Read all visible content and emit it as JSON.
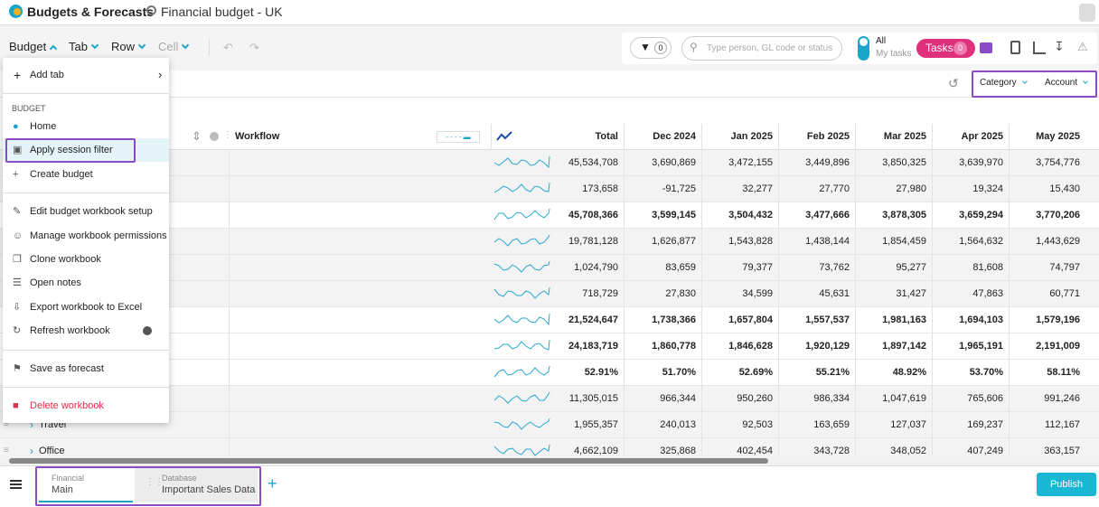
{
  "header": {
    "app_title": "Budgets & Forecasts",
    "workbook": "Financial budget - UK"
  },
  "toolbar": {
    "menus": [
      "Budget",
      "Tab",
      "Row",
      "Cell"
    ],
    "filter_count": "0",
    "search_placeholder": "Type person, GL code or status",
    "toggle": [
      "All",
      "My tasks"
    ],
    "tasks": "Tasks",
    "tasks_count": "0"
  },
  "dimensions": [
    "Category",
    "Account"
  ],
  "menu": {
    "top": "Add tab",
    "section": "BUDGET",
    "groups": [
      [
        "Home",
        "Apply session filter",
        "Create budget"
      ],
      [
        "Edit budget workbook setup",
        "Manage workbook permissions",
        "Clone workbook",
        "Open notes",
        "Export workbook to Excel",
        "Refresh workbook"
      ],
      [
        "Save as forecast"
      ],
      [
        "Delete workbook"
      ]
    ]
  },
  "table": {
    "workflow_header": "Workflow",
    "columns": [
      "Total",
      "Dec 2024",
      "Jan 2025",
      "Feb 2025",
      "Mar 2025",
      "Apr 2025",
      "May 2025"
    ],
    "rows": [
      {
        "values": [
          "45,534,708",
          "3,690,869",
          "3,472,155",
          "3,449,896",
          "3,850,325",
          "3,639,970",
          "3,754,776"
        ],
        "bold": false
      },
      {
        "values": [
          "173,658",
          "-91,725",
          "32,277",
          "27,770",
          "27,980",
          "19,324",
          "15,430"
        ],
        "bold": false
      },
      {
        "values": [
          "45,708,366",
          "3,599,145",
          "3,504,432",
          "3,477,666",
          "3,878,305",
          "3,659,294",
          "3,770,206"
        ],
        "bold": true
      },
      {
        "values": [
          "19,781,128",
          "1,626,877",
          "1,543,828",
          "1,438,144",
          "1,854,459",
          "1,564,632",
          "1,443,629"
        ],
        "bold": false
      },
      {
        "values": [
          "1,024,790",
          "83,659",
          "79,377",
          "73,762",
          "95,277",
          "81,608",
          "74,797"
        ],
        "bold": false
      },
      {
        "values": [
          "718,729",
          "27,830",
          "34,599",
          "45,631",
          "31,427",
          "47,863",
          "60,771"
        ],
        "bold": false
      },
      {
        "values": [
          "21,524,647",
          "1,738,366",
          "1,657,804",
          "1,557,537",
          "1,981,163",
          "1,694,103",
          "1,579,196"
        ],
        "bold": true
      },
      {
        "values": [
          "24,183,719",
          "1,860,778",
          "1,846,628",
          "1,920,129",
          "1,897,142",
          "1,965,191",
          "2,191,009"
        ],
        "bold": true
      },
      {
        "values": [
          "52.91%",
          "51.70%",
          "52.69%",
          "55.21%",
          "48.92%",
          "53.70%",
          "58.11%"
        ],
        "bold": true
      },
      {
        "values": [
          "11,305,015",
          "966,344",
          "950,260",
          "986,334",
          "1,047,619",
          "765,606",
          "991,246"
        ],
        "bold": false
      },
      {
        "label": "Travel",
        "values": [
          "1,955,357",
          "240,013",
          "92,503",
          "163,659",
          "127,037",
          "169,237",
          "112,167"
        ],
        "bold": false
      },
      {
        "label": "Office",
        "values": [
          "4,662,109",
          "325,868",
          "402,454",
          "343,728",
          "348,052",
          "407,249",
          "363,157"
        ],
        "bold": false
      }
    ]
  },
  "sheet_tabs": [
    {
      "type": "Financial",
      "name": "Main"
    },
    {
      "type": "Database",
      "name": "Important Sales Data"
    }
  ],
  "publish": "Publish"
}
